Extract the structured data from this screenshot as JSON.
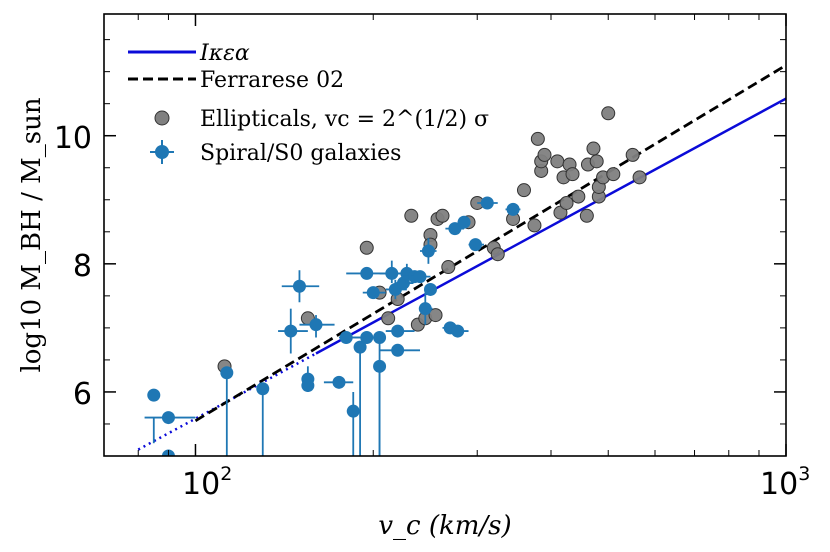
{
  "chart_data": {
    "type": "scatter",
    "xscale": "log",
    "xlim": [
      70,
      1000
    ],
    "ylim": [
      5,
      11.9
    ],
    "xlabel": "v_c (km/s)",
    "ylabel": "log10 M_BH / M_sun",
    "x_ticks": [
      {
        "value": 100,
        "base": "10",
        "exp": "2"
      },
      {
        "value": 1000,
        "base": "10",
        "exp": "3"
      }
    ],
    "y_ticks": [
      {
        "value": 6,
        "label": "6"
      },
      {
        "value": 8,
        "label": "8"
      },
      {
        "value": 10,
        "label": "10"
      }
    ],
    "legend": {
      "placement": "top-left",
      "entries": [
        {
          "key": "model",
          "label": "Iκεα",
          "style": "solid-line",
          "color": "#0b0bd8"
        },
        {
          "key": "ferrarese",
          "label": "Ferrarese 02",
          "style": "dashed-line",
          "color": "#000000"
        },
        {
          "key": "ellipticals",
          "label": "Ellipticals,  vc = 2^(1/2) σ",
          "style": "gray-marker",
          "color": "#808080"
        },
        {
          "key": "spirals",
          "label": "Spiral/S0 galaxies",
          "style": "errorbar-marker",
          "color": "#1f77b4"
        }
      ]
    },
    "series": [
      {
        "name": "Iκεα",
        "kind": "line",
        "color": "#0b0bd8",
        "solid": [
          [
            160,
            6.6
          ],
          [
            1000,
            10.58
          ]
        ],
        "dotted": [
          [
            80,
            5.1
          ],
          [
            160,
            6.6
          ]
        ]
      },
      {
        "name": "Ferrarese 02",
        "kind": "line",
        "style": "dashed",
        "color": "#000000",
        "points": [
          [
            100,
            5.55
          ],
          [
            1000,
            11.1
          ]
        ]
      },
      {
        "name": "Ellipticals",
        "kind": "scatter",
        "color": "#808080",
        "points": [
          [
            112,
            6.4
          ],
          [
            155,
            7.15
          ],
          [
            195,
            8.25
          ],
          [
            205,
            7.55
          ],
          [
            212,
            7.15
          ],
          [
            220,
            7.45
          ],
          [
            232,
            8.75
          ],
          [
            238,
            7.05
          ],
          [
            245,
            7.15
          ],
          [
            250,
            8.45
          ],
          [
            250,
            8.3
          ],
          [
            255,
            7.2
          ],
          [
            257,
            8.7
          ],
          [
            262,
            8.75
          ],
          [
            268,
            7.95
          ],
          [
            290,
            8.65
          ],
          [
            300,
            8.95
          ],
          [
            320,
            8.25
          ],
          [
            325,
            8.15
          ],
          [
            345,
            8.7
          ],
          [
            360,
            9.15
          ],
          [
            375,
            8.6
          ],
          [
            380,
            9.95
          ],
          [
            385,
            9.45
          ],
          [
            385,
            9.6
          ],
          [
            390,
            9.7
          ],
          [
            410,
            9.6
          ],
          [
            415,
            8.8
          ],
          [
            420,
            9.35
          ],
          [
            425,
            8.95
          ],
          [
            430,
            9.55
          ],
          [
            435,
            9.4
          ],
          [
            445,
            9.05
          ],
          [
            460,
            8.75
          ],
          [
            462,
            9.55
          ],
          [
            472,
            9.8
          ],
          [
            478,
            9.6
          ],
          [
            482,
            9.05
          ],
          [
            482,
            9.2
          ],
          [
            490,
            9.35
          ],
          [
            500,
            10.35
          ],
          [
            510,
            9.4
          ],
          [
            550,
            9.7
          ],
          [
            565,
            9.35
          ]
        ]
      },
      {
        "name": "Spiral/S0 galaxies",
        "kind": "errorbar",
        "color": "#1f77b4",
        "points": [
          [
            85,
            5.95,
            85,
            85,
            5.2,
            5.6
          ],
          [
            90,
            5.6,
            82,
            100,
            5.6,
            5.6
          ],
          [
            90,
            5.0,
            90,
            90,
            5.0,
            5.0
          ],
          [
            113,
            6.3,
            113,
            113,
            4.9,
            6.3
          ],
          [
            130,
            6.05,
            130,
            130,
            5.0,
            6.05
          ],
          [
            145,
            6.95,
            138,
            155,
            6.6,
            7.3
          ],
          [
            150,
            7.65,
            140,
            162,
            7.4,
            7.9
          ],
          [
            155,
            6.2,
            155,
            155,
            6.0,
            6.4
          ],
          [
            155,
            6.1,
            155,
            155,
            6.1,
            6.1
          ],
          [
            160,
            7.05,
            150,
            172,
            6.85,
            7.2
          ],
          [
            175,
            6.15,
            165,
            185,
            6.15,
            6.15
          ],
          [
            180,
            6.85,
            175,
            190,
            6.85,
            6.85
          ],
          [
            185,
            5.7,
            185,
            185,
            5.0,
            6.0
          ],
          [
            190,
            6.7,
            190,
            190,
            5.0,
            6.7
          ],
          [
            195,
            6.85,
            185,
            205,
            6.85,
            6.85
          ],
          [
            195,
            7.85,
            180,
            215,
            7.85,
            7.85
          ],
          [
            200,
            7.55,
            192,
            210,
            7.55,
            7.55
          ],
          [
            205,
            6.85,
            205,
            205,
            5.0,
            6.85
          ],
          [
            205,
            6.4,
            205,
            205,
            5.0,
            6.4
          ],
          [
            215,
            7.85,
            205,
            228,
            7.7,
            8.05
          ],
          [
            218,
            7.6,
            210,
            228,
            7.45,
            7.75
          ],
          [
            220,
            6.95,
            210,
            235,
            6.95,
            6.95
          ],
          [
            220,
            6.65,
            205,
            240,
            6.65,
            6.65
          ],
          [
            225,
            7.7,
            218,
            234,
            7.7,
            7.7
          ],
          [
            228,
            7.85,
            220,
            236,
            7.7,
            8.0
          ],
          [
            235,
            7.8,
            225,
            245,
            7.8,
            7.8
          ],
          [
            240,
            7.8,
            232,
            250,
            7.8,
            7.8
          ],
          [
            245,
            7.3,
            240,
            252,
            7.05,
            7.55
          ],
          [
            248,
            8.2,
            240,
            256,
            8.0,
            8.4
          ],
          [
            250,
            7.6,
            245,
            256,
            7.6,
            7.6
          ],
          [
            270,
            7.0,
            262,
            280,
            7.0,
            7.0
          ],
          [
            275,
            8.55,
            265,
            285,
            8.55,
            8.55
          ],
          [
            278,
            6.95,
            268,
            290,
            6.95,
            6.95
          ],
          [
            285,
            8.65,
            278,
            292,
            8.65,
            8.65
          ],
          [
            298,
            8.3,
            290,
            308,
            8.3,
            8.3
          ],
          [
            312,
            8.95,
            300,
            325,
            8.95,
            8.95
          ],
          [
            345,
            8.85,
            335,
            355,
            8.85,
            8.85
          ]
        ]
      }
    ]
  }
}
